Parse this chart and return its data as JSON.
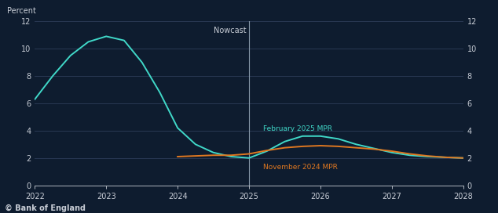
{
  "background_color": "#0e1c2f",
  "text_color": "#c8cdd6",
  "grid_color": "#2e3d5a",
  "feb2025_color": "#40d8c8",
  "nov2024_color": "#e07820",
  "nowcast_line_color": "#8899aa",
  "nowcast_x": 2025,
  "nowcast_label": "Nowcast",
  "ylabel_left": "Percent",
  "ylim": [
    0,
    12
  ],
  "yticks": [
    0,
    2,
    4,
    6,
    8,
    10,
    12
  ],
  "xlim_left": 2022,
  "xlim_right": 2028,
  "xticks": [
    2022,
    2023,
    2024,
    2025,
    2026,
    2027,
    2028
  ],
  "feb2025_label": "February 2025 MPR",
  "nov2024_label": "November 2024 MPR",
  "footer": "© Bank of England",
  "feb2025_x": [
    2022.0,
    2022.25,
    2022.5,
    2022.75,
    2023.0,
    2023.25,
    2023.5,
    2023.75,
    2024.0,
    2024.25,
    2024.5,
    2024.75,
    2025.0,
    2025.25,
    2025.5,
    2025.75,
    2026.0,
    2026.25,
    2026.5,
    2026.75,
    2027.0,
    2027.25,
    2027.5,
    2027.75,
    2028.0
  ],
  "feb2025_y": [
    6.3,
    8.0,
    9.5,
    10.5,
    10.9,
    10.6,
    9.0,
    6.8,
    4.2,
    3.0,
    2.4,
    2.1,
    2.0,
    2.5,
    3.2,
    3.6,
    3.6,
    3.4,
    3.0,
    2.7,
    2.4,
    2.2,
    2.1,
    2.05,
    2.0
  ],
  "nov2024_x": [
    2024.0,
    2024.25,
    2024.5,
    2024.75,
    2025.0,
    2025.25,
    2025.5,
    2025.75,
    2026.0,
    2026.25,
    2026.5,
    2026.75,
    2027.0,
    2027.25,
    2027.5,
    2027.75,
    2028.0
  ],
  "nov2024_y": [
    2.1,
    2.15,
    2.2,
    2.2,
    2.3,
    2.55,
    2.75,
    2.85,
    2.9,
    2.85,
    2.75,
    2.65,
    2.5,
    2.3,
    2.15,
    2.05,
    2.0
  ]
}
